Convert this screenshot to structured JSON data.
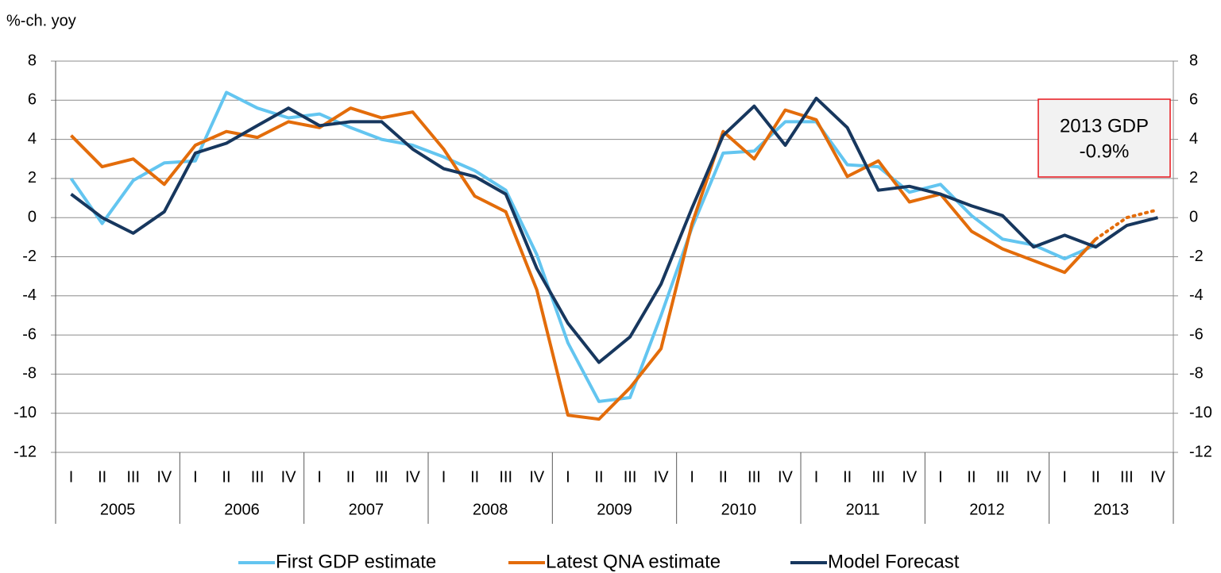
{
  "chart_data": {
    "type": "line",
    "y_label": "%-ch. yoy",
    "categories": [
      "I",
      "II",
      "III",
      "IV",
      "I",
      "II",
      "III",
      "IV",
      "I",
      "II",
      "III",
      "IV",
      "I",
      "II",
      "III",
      "IV",
      "I",
      "II",
      "III",
      "IV",
      "I",
      "II",
      "III",
      "IV",
      "I",
      "II",
      "III",
      "IV",
      "I",
      "II",
      "III",
      "IV",
      "I",
      "II",
      "III",
      "IV"
    ],
    "year_groups": [
      "2005",
      "2006",
      "2007",
      "2008",
      "2009",
      "2010",
      "2011",
      "2012",
      "2013"
    ],
    "series": [
      {
        "name": "First GDP estimate",
        "color": "#63c5f0",
        "values": [
          2.0,
          -0.3,
          1.9,
          2.8,
          2.9,
          6.4,
          5.6,
          5.1,
          5.3,
          4.6,
          4.0,
          3.7,
          3.1,
          2.4,
          1.4,
          -1.9,
          -6.4,
          -9.4,
          -9.2,
          -5.0,
          -0.5,
          3.3,
          3.4,
          4.9,
          4.9,
          2.7,
          2.6,
          1.3,
          1.7,
          0.1,
          -1.1,
          -1.4,
          -2.1,
          -1.4,
          null,
          null
        ]
      },
      {
        "name": "Latest QNA estimate",
        "color": "#e36c0a",
        "dotted_from": 33,
        "values": [
          4.2,
          2.6,
          3.0,
          1.7,
          3.7,
          4.4,
          4.1,
          4.9,
          4.6,
          5.6,
          5.1,
          5.4,
          3.5,
          1.1,
          0.3,
          -3.7,
          -10.1,
          -10.3,
          -8.7,
          -6.7,
          -0.3,
          4.4,
          3.0,
          5.5,
          5.0,
          2.1,
          2.9,
          0.8,
          1.2,
          -0.7,
          -1.6,
          -2.2,
          -2.8,
          -1.1,
          0.0,
          0.4
        ]
      },
      {
        "name": "Model Forecast",
        "color": "#17375e",
        "values": [
          1.2,
          0.0,
          -0.8,
          0.3,
          3.3,
          3.8,
          4.7,
          5.6,
          4.7,
          4.9,
          4.9,
          3.5,
          2.5,
          2.1,
          1.2,
          -2.6,
          -5.4,
          -7.4,
          -6.1,
          -3.4,
          0.5,
          4.2,
          5.7,
          3.7,
          6.1,
          4.6,
          1.4,
          1.6,
          1.2,
          0.6,
          0.1,
          -1.5,
          -0.9,
          -1.5,
          -0.4,
          0.0
        ]
      }
    ],
    "ylim": [
      -12,
      8
    ],
    "yticks": [
      -12,
      -10,
      -8,
      -6,
      -4,
      -2,
      0,
      2,
      4,
      6,
      8
    ],
    "y2lim": [
      -12,
      8
    ],
    "y2ticks": [
      -12,
      -10,
      -8,
      -6,
      -4,
      -2,
      0,
      2,
      4,
      6,
      8
    ],
    "grid": true,
    "annotation": {
      "lines": [
        "2013 GDP",
        "-0.9%"
      ],
      "border_color": "#e8151b",
      "fill": "#f2f2f2"
    },
    "legend": "bottom"
  }
}
